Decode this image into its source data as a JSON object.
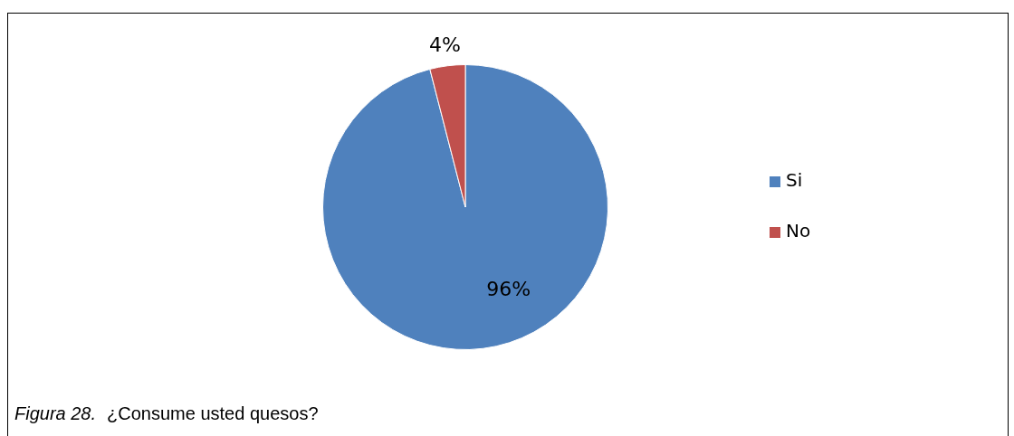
{
  "chart_data": {
    "type": "pie",
    "categories": [
      "Si",
      "No"
    ],
    "values": [
      96,
      4
    ],
    "colors": [
      "#4f81bd",
      "#c0504d"
    ],
    "value_labels": [
      "96%",
      "4%"
    ],
    "legend": "right",
    "annotations": [
      "Figura 28.",
      "¿Consume usted quesos?"
    ]
  }
}
